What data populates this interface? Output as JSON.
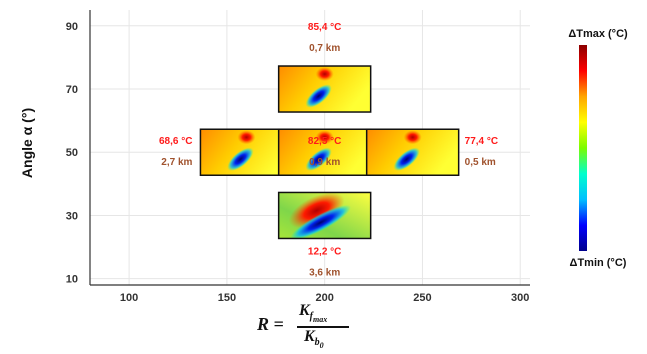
{
  "chart_data": {
    "type": "scatter",
    "xlabel_prefix": "R =",
    "xlabel_num": "K",
    "xlabel_num_sub": "f",
    "xlabel_num_subsub": "max",
    "xlabel_den": "K",
    "xlabel_den_sub": "b",
    "xlabel_den_subsub": "0",
    "ylabel": "Angle α (°)",
    "xlim": [
      80,
      305
    ],
    "ylim": [
      8,
      95
    ],
    "xticks": [
      100,
      150,
      200,
      250,
      300
    ],
    "yticks": [
      10,
      30,
      50,
      70,
      90
    ],
    "xtick_labels": [
      "100",
      "150",
      "200",
      "250",
      "300"
    ],
    "ytick_labels": [
      "10",
      "30",
      "50",
      "70",
      "90"
    ],
    "grid": true,
    "points": [
      {
        "x": 200,
        "y": 70,
        "temp": "85,4 °C",
        "dist": "0,7 km",
        "label_side": "above"
      },
      {
        "x": 160,
        "y": 50,
        "temp": "68,6 °C",
        "dist": "2,7 km",
        "label_side": "left"
      },
      {
        "x": 200,
        "y": 50,
        "temp": "82,5 °C",
        "dist": "0,9 km",
        "label_side": "center"
      },
      {
        "x": 245,
        "y": 50,
        "temp": "77,4 °C",
        "dist": "0,5 km",
        "label_side": "right"
      },
      {
        "x": 200,
        "y": 30,
        "temp": "12,2 °C",
        "dist": "3,6 km",
        "label_side": "below"
      }
    ],
    "colorbar": {
      "max_label": "ΔTmax (°C)",
      "min_label": "ΔTmin (°C)",
      "colors": [
        "#00008b",
        "#0000ff",
        "#00bfff",
        "#00ffcc",
        "#7cfc00",
        "#ffff00",
        "#ffa500",
        "#ff0000",
        "#8b0000"
      ]
    }
  }
}
